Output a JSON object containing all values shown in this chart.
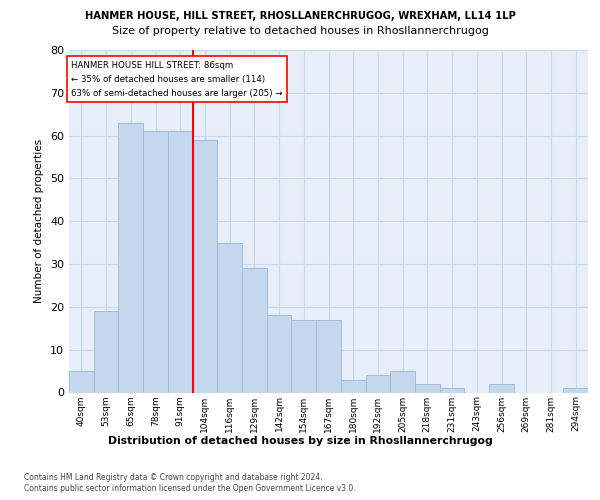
{
  "title": "HANMER HOUSE, HILL STREET, RHOSLLANERCHRUGOG, WREXHAM, LL14 1LP",
  "subtitle": "Size of property relative to detached houses in Rhosllannerchrugog",
  "xlabel": "Distribution of detached houses by size in Rhosllannerchrugog",
  "ylabel": "Number of detached properties",
  "categories": [
    "40sqm",
    "53sqm",
    "65sqm",
    "78sqm",
    "91sqm",
    "104sqm",
    "116sqm",
    "129sqm",
    "142sqm",
    "154sqm",
    "167sqm",
    "180sqm",
    "192sqm",
    "205sqm",
    "218sqm",
    "231sqm",
    "243sqm",
    "256sqm",
    "269sqm",
    "281sqm",
    "294sqm"
  ],
  "values": [
    5,
    19,
    63,
    61,
    61,
    59,
    35,
    29,
    18,
    17,
    17,
    3,
    4,
    5,
    2,
    1,
    0,
    2,
    0,
    0,
    1
  ],
  "bar_color": "#c5d8ed",
  "bar_edge_color": "#9ab8d8",
  "red_line_x": 4.5,
  "annotation_line1": "HANMER HOUSE HILL STREET: 86sqm",
  "annotation_line2": "← 35% of detached houses are smaller (114)",
  "annotation_line3": "63% of semi-detached houses are larger (205) →",
  "ylim": [
    0,
    80
  ],
  "yticks": [
    0,
    10,
    20,
    30,
    40,
    50,
    60,
    70,
    80
  ],
  "footer1": "Contains HM Land Registry data © Crown copyright and database right 2024.",
  "footer2": "Contains public sector information licensed under the Open Government Licence v3.0.",
  "bg_color": "#ffffff",
  "grid_color": "#c8d8ec",
  "axes_bg_color": "#e8eef8"
}
